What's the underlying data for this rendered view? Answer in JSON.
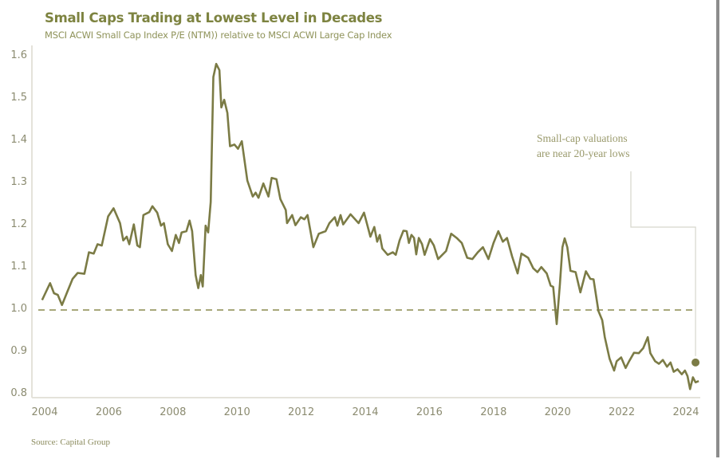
{
  "chart_data": {
    "type": "line",
    "title": "Small Caps Trading at Lowest Level in Decades",
    "subtitle": "MSCI ACWI Small Cap Index P/E (NTM)) relative to MSCI ACWI Large Cap Index",
    "source": "Source: Capital Group",
    "xlabel": "",
    "ylabel": "",
    "xlim": [
      2003.9,
      2024.45
    ],
    "ylim": [
      0.8,
      1.6
    ],
    "x_ticks": [
      "2004",
      "2006",
      "2008",
      "2010",
      "2012",
      "2014",
      "2016",
      "2018",
      "2020",
      "2022",
      "2024"
    ],
    "y_ticks": [
      "0.8",
      "0.9",
      "1.0",
      "1.1",
      "1.2",
      "1.3",
      "1.4",
      "1.5",
      "1.6"
    ],
    "grid": false,
    "reference_line": {
      "value": 1.0,
      "style": "dashed"
    },
    "annotation": {
      "lines": [
        "Small-cap valuations",
        "are near 20-year lows"
      ],
      "marker": {
        "x": 2024.3,
        "y": 0.87
      }
    },
    "colors": {
      "line": "#7b7b45",
      "title": "#7d8340",
      "axis": "#e4e2da"
    },
    "series": [
      {
        "x": [
          2003.92,
          2004.17,
          2004.29,
          2004.41,
          2004.54,
          2004.7,
          2004.87,
          2005.03,
          2005.24,
          2005.38,
          2005.53,
          2005.65,
          2005.78,
          2005.98,
          2006.15,
          2006.35,
          2006.45,
          2006.56,
          2006.64,
          2006.78,
          2006.89,
          2006.97,
          2007.08,
          2007.26,
          2007.36,
          2007.51,
          2007.63,
          2007.72,
          2007.84,
          2007.97,
          2008.09,
          2008.19,
          2008.27,
          2008.42,
          2008.52,
          2008.6,
          2008.71,
          2008.79,
          2008.87,
          2008.93,
          2009.02,
          2009.1,
          2009.18,
          2009.26,
          2009.35,
          2009.45,
          2009.51,
          2009.6,
          2009.7,
          2009.78,
          2009.92,
          2010.03,
          2010.15,
          2010.32,
          2010.49,
          2010.58,
          2010.67,
          2010.82,
          2010.98,
          2011.08,
          2011.23,
          2011.35,
          2011.52,
          2011.56,
          2011.72,
          2011.82,
          2011.99,
          2012.1,
          2012.2,
          2012.38,
          2012.55,
          2012.76,
          2012.88,
          2013.05,
          2013.13,
          2013.23,
          2013.31,
          2013.54,
          2013.79,
          2013.96,
          2014.16,
          2014.28,
          2014.37,
          2014.45,
          2014.53,
          2014.7,
          2014.86,
          2014.95,
          2015.07,
          2015.19,
          2015.29,
          2015.36,
          2015.44,
          2015.52,
          2015.59,
          2015.67,
          2015.77,
          2015.85,
          2016.02,
          2016.14,
          2016.27,
          2016.52,
          2016.68,
          2016.85,
          2017.01,
          2017.18,
          2017.34,
          2017.51,
          2017.67,
          2017.84,
          2018.0,
          2018.15,
          2018.29,
          2018.42,
          2018.58,
          2018.75,
          2018.87,
          2019.08,
          2019.24,
          2019.37,
          2019.49,
          2019.66,
          2019.78,
          2019.86,
          2019.97,
          2020.07,
          2020.15,
          2020.22,
          2020.3,
          2020.4,
          2020.56,
          2020.71,
          2020.88,
          2021.02,
          2021.12,
          2021.27,
          2021.39,
          2021.47,
          2021.62,
          2021.76,
          2021.84,
          2021.98,
          2022.12,
          2022.23,
          2022.38,
          2022.53,
          2022.67,
          2022.81,
          2022.89,
          2023.04,
          2023.16,
          2023.28,
          2023.41,
          2023.52,
          2023.62,
          2023.74,
          2023.87,
          2023.97,
          2024.05,
          2024.13,
          2024.22,
          2024.3,
          2024.4
        ],
        "y": [
          1.018,
          1.058,
          1.034,
          1.03,
          1.006,
          1.036,
          1.068,
          1.082,
          1.08,
          1.131,
          1.128,
          1.15,
          1.147,
          1.216,
          1.235,
          1.2,
          1.159,
          1.168,
          1.15,
          1.197,
          1.147,
          1.143,
          1.219,
          1.226,
          1.24,
          1.225,
          1.194,
          1.2,
          1.15,
          1.134,
          1.172,
          1.153,
          1.178,
          1.181,
          1.206,
          1.181,
          1.077,
          1.046,
          1.077,
          1.05,
          1.194,
          1.178,
          1.25,
          1.546,
          1.577,
          1.562,
          1.474,
          1.492,
          1.461,
          1.382,
          1.386,
          1.376,
          1.394,
          1.301,
          1.263,
          1.272,
          1.26,
          1.294,
          1.263,
          1.307,
          1.304,
          1.257,
          1.231,
          1.2,
          1.219,
          1.195,
          1.214,
          1.209,
          1.219,
          1.143,
          1.175,
          1.181,
          1.2,
          1.214,
          1.194,
          1.219,
          1.197,
          1.221,
          1.2,
          1.225,
          1.168,
          1.191,
          1.156,
          1.172,
          1.14,
          1.125,
          1.131,
          1.125,
          1.159,
          1.182,
          1.181,
          1.153,
          1.172,
          1.165,
          1.126,
          1.165,
          1.15,
          1.125,
          1.162,
          1.147,
          1.115,
          1.134,
          1.175,
          1.165,
          1.153,
          1.118,
          1.115,
          1.131,
          1.143,
          1.115,
          1.153,
          1.181,
          1.156,
          1.165,
          1.121,
          1.081,
          1.128,
          1.118,
          1.093,
          1.084,
          1.096,
          1.081,
          1.052,
          1.049,
          0.961,
          1.055,
          1.143,
          1.164,
          1.143,
          1.087,
          1.084,
          1.036,
          1.086,
          1.068,
          1.067,
          0.992,
          0.97,
          0.93,
          0.879,
          0.851,
          0.873,
          0.882,
          0.857,
          0.873,
          0.893,
          0.892,
          0.904,
          0.93,
          0.892,
          0.873,
          0.867,
          0.876,
          0.86,
          0.87,
          0.848,
          0.854,
          0.842,
          0.851,
          0.838,
          0.807,
          0.835,
          0.823,
          0.826
        ]
      }
    ]
  }
}
